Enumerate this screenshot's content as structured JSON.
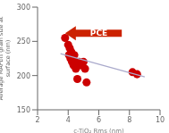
{
  "chart_data": {
    "type": "scatter",
    "x_label": "c-TiO₂ Rms (nm)",
    "y_label": "Average MAPbI₃ grain size at\nsurface (nm)",
    "series": [
      {
        "type": "scatter",
        "color": "#cc0000",
        "marker": "circle",
        "x": [
          3.8,
          4.0,
          4.05,
          4.1,
          4.15,
          4.2,
          4.25,
          4.3,
          4.35,
          4.4,
          4.45,
          4.5,
          4.55,
          4.6,
          4.7,
          4.8,
          5.0,
          5.1,
          5.2,
          8.2,
          8.5
        ],
        "values": [
          255,
          245,
          230,
          240,
          225,
          235,
          220,
          225,
          215,
          230,
          220,
          210,
          215,
          195,
          220,
          215,
          220,
          210,
          190,
          205,
          202
        ]
      },
      {
        "type": "line",
        "color": "#aaaacc",
        "line_style": "solid",
        "x": [
          3.5,
          9.0
        ],
        "values": [
          232,
          198
        ]
      }
    ],
    "annotations": [
      {
        "text": "PCE",
        "x": 6.0,
        "y": 262,
        "color": "#ffffff"
      }
    ],
    "arrows": [
      {
        "x_from": 7.5,
        "y_from": 262,
        "x_to": 3.8,
        "y_to": 262,
        "color": "#cc2200"
      }
    ],
    "xlim": [
      2,
      10
    ],
    "ylim": [
      150,
      300
    ],
    "xticks": [
      2,
      4,
      6,
      8,
      10
    ],
    "yticks": [
      150,
      200,
      250,
      300
    ],
    "grid": false
  }
}
